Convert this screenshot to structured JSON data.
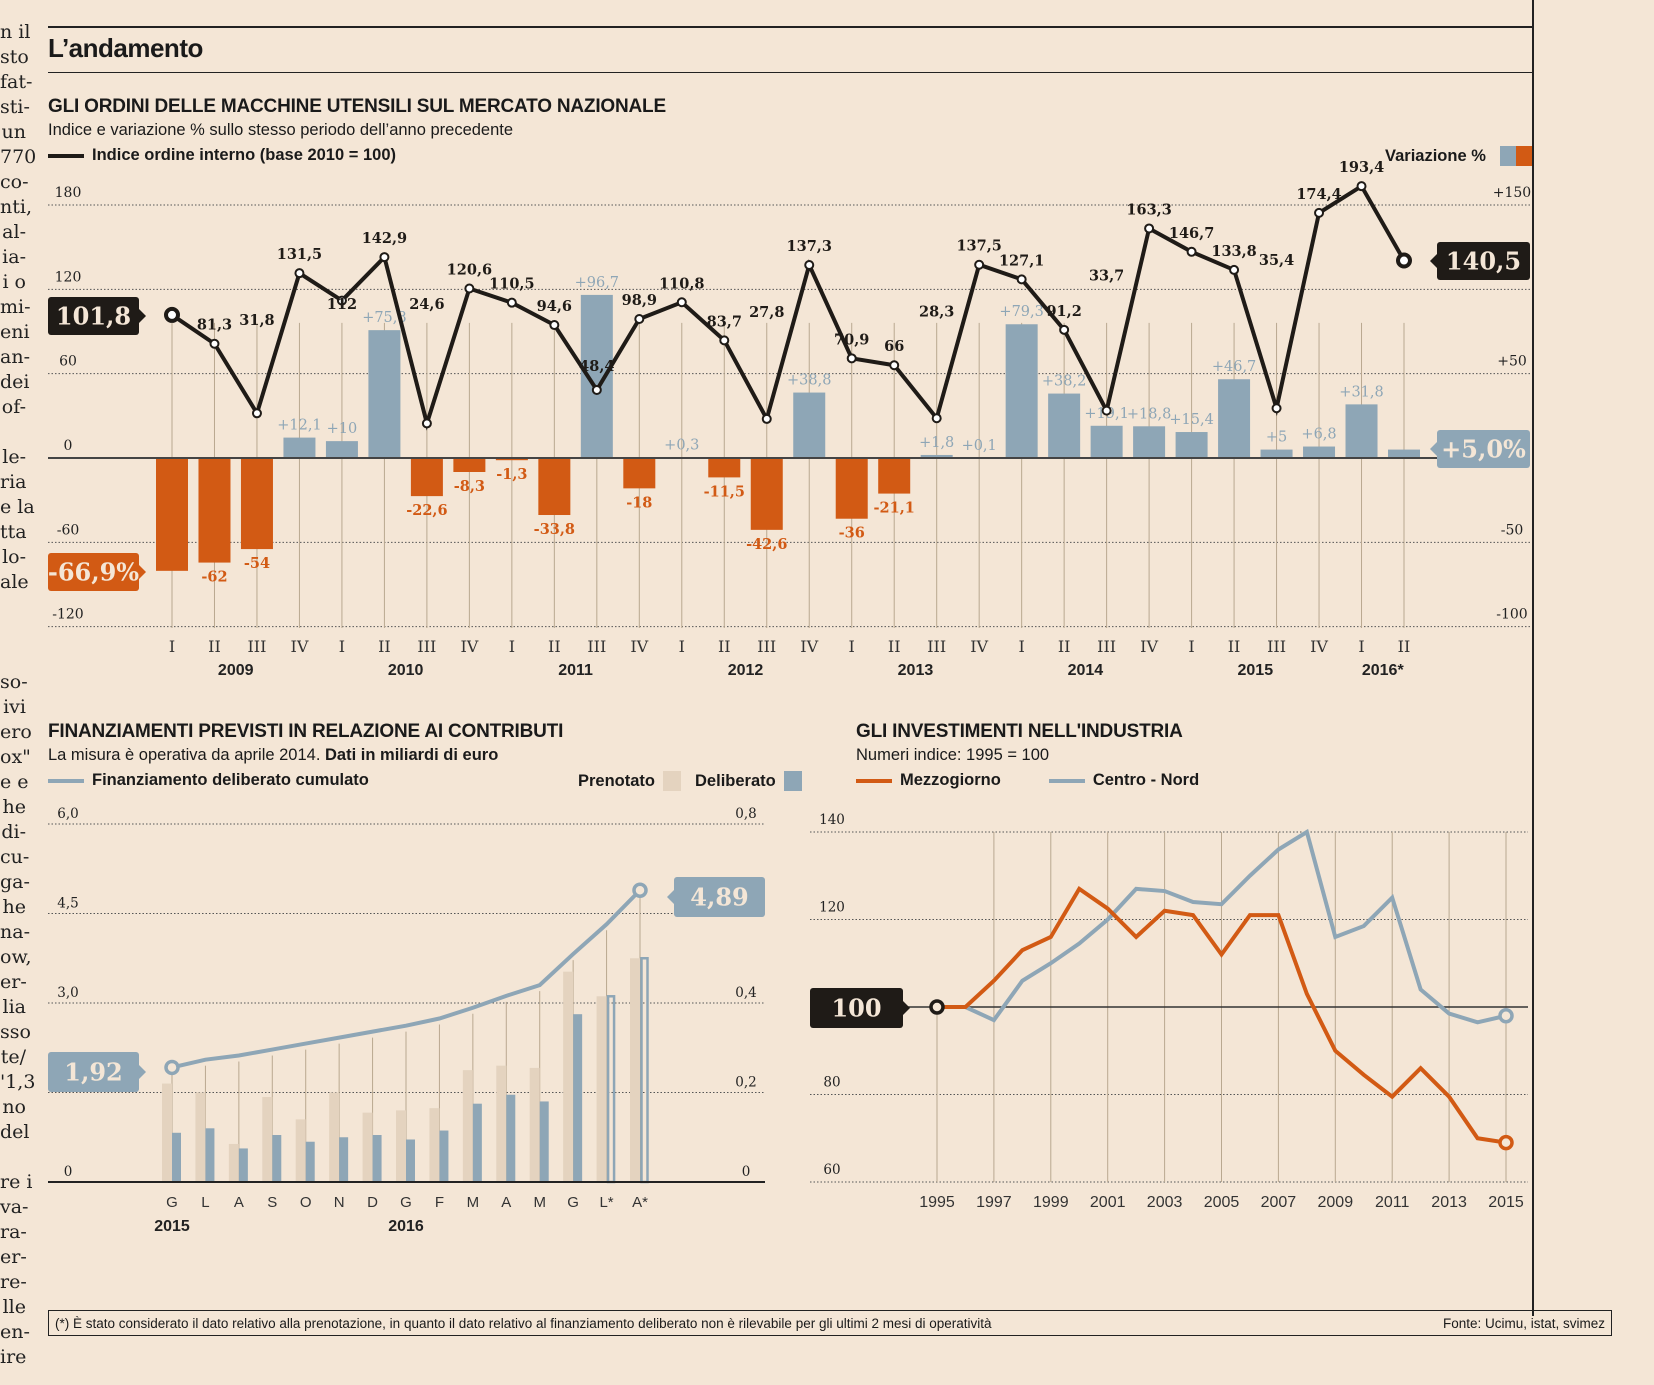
{
  "side_text": "n il\nsto\nfat-\nsti-\nun\n770\nco-\nnti,\nal-\nia-\ni o\nmi-\neni\nan-\ndei\nof-\n\nle-\nria\ne la\ntta\nlo-\nale\n\n\n\nso-\nivi\nero\nox\"\ne e\nhe\ndi-\ncu-\nga-\nhe\nna-\now,\ner-\nlia\nsso\nte/\n'1,3\nno\ndel\n\nre i\nva-\nra-\ner-\nre-\nlle\nen-\nire",
  "header": {
    "title": "L’andamento"
  },
  "colors": {
    "blue": "#8ea6b6",
    "orange": "#d25a14",
    "black": "#1f1b17",
    "beige": "#e4d3bf",
    "grid": "#555",
    "tick": "#b9a890"
  },
  "chart1": {
    "title": "GLI ORDINI DELLE MACCHINE UTENSILI SUL MERCATO NAZIONALE",
    "subtitle": "Indice e variazione % sullo stesso periodo dell’anno precedente",
    "legend_line": "Indice ordine interno (base 2010 = 100)",
    "legend_bars": "Variazione %",
    "callout_start": "101,8",
    "callout_end": "140,5",
    "callout_neg": "-66,9%",
    "callout_pos": "+5,0%"
  },
  "chart2": {
    "title": "FINANZIAMENTI PREVISTI IN RELAZIONE AI CONTRIBUTI",
    "subtitle_plain": "La misura è operativa da aprile 2014. ",
    "subtitle_bold": "Dati in miliardi di euro",
    "legend_line": "Finanziamento deliberato cumulato",
    "legend_prenotato": "Prenotato",
    "legend_deliberato": "Deliberato",
    "callout_start": "1,92",
    "callout_end": "4,89"
  },
  "chart3": {
    "title": "GLI INVESTIMENTI NELL'INDUSTRIA",
    "subtitle": "Numeri indice: 1995 = 100",
    "legend_a": "Mezzogiorno",
    "legend_b": "Centro - Nord",
    "callout": "100"
  },
  "footer": {
    "note": "(*) È stato considerato il dato relativo alla prenotazione, in quanto il dato relativo al finanziamento deliberato non è rilevabile per gli ultimi 2 mesi di operatività",
    "source": "Fonte: Ucimu, istat, svimez"
  },
  "chart_data": [
    {
      "type": "bar+line",
      "title": "GLI ORDINI DELLE MACCHINE UTENSILI SUL MERCATO NAZIONALE",
      "categories": [
        "I",
        "II",
        "III",
        "IV",
        "I",
        "II",
        "III",
        "IV",
        "I",
        "II",
        "III",
        "IV",
        "I",
        "II",
        "III",
        "IV",
        "I",
        "II",
        "III",
        "IV",
        "I",
        "II",
        "III",
        "IV",
        "I",
        "II",
        "III",
        "IV",
        "I",
        "II"
      ],
      "years": [
        {
          "label": "2009",
          "span": [
            0,
            3
          ]
        },
        {
          "label": "2010",
          "span": [
            4,
            7
          ]
        },
        {
          "label": "2011",
          "span": [
            8,
            11
          ]
        },
        {
          "label": "2012",
          "span": [
            12,
            15
          ]
        },
        {
          "label": "2013",
          "span": [
            16,
            19
          ]
        },
        {
          "label": "2014",
          "span": [
            20,
            23
          ]
        },
        {
          "label": "2015",
          "span": [
            24,
            27
          ]
        },
        {
          "label": "2016*",
          "span": [
            28,
            29
          ]
        }
      ],
      "line": {
        "name": "Indice ordine interno (base 2010 = 100)",
        "values": [
          101.8,
          81.3,
          31.8,
          131.5,
          112,
          142.9,
          24.6,
          120.6,
          110.5,
          94.6,
          48.4,
          98.9,
          110.8,
          83.7,
          27.8,
          137.3,
          70.9,
          66,
          28.3,
          137.5,
          127.1,
          91.2,
          33.7,
          163.3,
          146.7,
          133.8,
          35.4,
          174.4,
          193.4,
          140.5
        ],
        "labels": [
          "101,8",
          "81,3",
          "31,8",
          "131,5",
          "112",
          "142,9",
          "24,6",
          "120,6",
          "110,5",
          "94,6",
          "48,4",
          "98,9",
          "110,8",
          "83,7",
          "27,8",
          "137,3",
          "70,9",
          "66",
          "28,3",
          "137,5",
          "127,1",
          "91,2",
          "33,7",
          "163,3",
          "146,7",
          "133,8",
          "35,4",
          "174,4",
          "193,4",
          "140,5"
        ]
      },
      "bars": {
        "name": "Variazione %",
        "values": [
          -66.9,
          -62,
          -54,
          12.1,
          10,
          75.8,
          -22.6,
          -8.3,
          -1.3,
          -33.8,
          96.7,
          -18,
          0.3,
          -11.5,
          -42.6,
          38.8,
          -36,
          -21.1,
          1.8,
          0.1,
          79.3,
          38.2,
          19.1,
          18.8,
          15.4,
          46.7,
          5,
          6.8,
          31.8,
          5.0
        ],
        "labels": [
          "",
          "-62",
          "-54",
          "+12,1",
          "+10",
          "+75,8",
          "-22,6",
          "-8,3",
          "-1,3",
          "-33,8",
          "+96,7",
          "-18",
          "+0,3",
          "-11,5",
          "-42,6",
          "+38,8",
          "-36",
          "-21,1",
          "+1,8",
          "+0,1",
          "+79,3",
          "+38,2",
          "+19,1",
          "+18,8",
          "+15,4",
          "+46,7",
          "+5",
          "+6,8",
          "+31,8",
          ""
        ]
      },
      "left_axis": {
        "ticks": [
          "180",
          "120",
          "60",
          "0",
          "-60",
          "-120"
        ],
        "ylim": [
          -120,
          180
        ]
      },
      "right_axis": {
        "ticks": [
          "+150",
          "+50",
          "-50",
          "-100"
        ],
        "ylim": [
          -100,
          150
        ]
      }
    },
    {
      "type": "bar+line",
      "title": "FINANZIAMENTI PREVISTI IN RELAZIONE AI CONTRIBUTI",
      "categories": [
        "G",
        "L",
        "A",
        "S",
        "O",
        "N",
        "D",
        "G",
        "F",
        "M",
        "A",
        "M",
        "G",
        "L*",
        "A*"
      ],
      "year_labels": [
        {
          "label": "2015",
          "index": 0
        },
        {
          "label": "2016",
          "index": 7
        }
      ],
      "line": {
        "name": "Finanziamento deliberato cumulato",
        "values": [
          1.92,
          2.05,
          2.12,
          2.22,
          2.32,
          2.42,
          2.52,
          2.62,
          2.74,
          2.92,
          3.12,
          3.3,
          3.82,
          4.32,
          4.89
        ]
      },
      "prenotato": [
        0.22,
        0.2,
        0.085,
        0.19,
        0.14,
        0.2,
        0.155,
        0.16,
        0.165,
        0.25,
        0.26,
        0.255,
        0.47,
        0.415,
        0.5
      ],
      "deliberato": [
        0.11,
        0.12,
        0.075,
        0.105,
        0.09,
        0.1,
        0.105,
        0.095,
        0.115,
        0.175,
        0.195,
        0.18,
        0.375,
        0.415,
        0.5
      ],
      "deliberato_outlined": [
        false,
        false,
        false,
        false,
        false,
        false,
        false,
        false,
        false,
        false,
        false,
        false,
        false,
        true,
        true
      ],
      "left_axis": {
        "ticks": [
          "6,0",
          "4,5",
          "3,0",
          "",
          "0"
        ],
        "ylim": [
          0,
          6
        ]
      },
      "right_axis": {
        "ticks": [
          "0,8",
          "",
          "0,4",
          "0,2",
          "0"
        ],
        "ylim": [
          0,
          0.8
        ]
      }
    },
    {
      "type": "line",
      "title": "GLI INVESTIMENTI NELL'INDUSTRIA",
      "x": [
        1995,
        1996,
        1997,
        1998,
        1999,
        2000,
        2001,
        2002,
        2003,
        2004,
        2005,
        2006,
        2007,
        2008,
        2009,
        2010,
        2011,
        2012,
        2013,
        2014,
        2015
      ],
      "x_tick_labels": [
        "1995",
        "1997",
        "1999",
        "2001",
        "2003",
        "2005",
        "2007",
        "2009",
        "2011",
        "2013",
        "2015"
      ],
      "series": [
        {
          "name": "Mezzogiorno",
          "values": [
            100,
            100,
            106,
            113,
            116,
            127,
            122.5,
            116,
            122,
            121,
            112,
            121,
            121,
            103,
            90,
            84.5,
            79.5,
            86,
            79.5,
            70,
            69
          ]
        },
        {
          "name": "Centro - Nord",
          "values": [
            100,
            100,
            97,
            106,
            110,
            114.5,
            120,
            127,
            126.5,
            124,
            123.5,
            130,
            136,
            140,
            116,
            118.5,
            125,
            104,
            98.5,
            96.5,
            98
          ]
        }
      ],
      "y_ticks": [
        "140",
        "120",
        "80",
        "60"
      ],
      "ylim": [
        60,
        140
      ],
      "baseline": 100
    }
  ]
}
